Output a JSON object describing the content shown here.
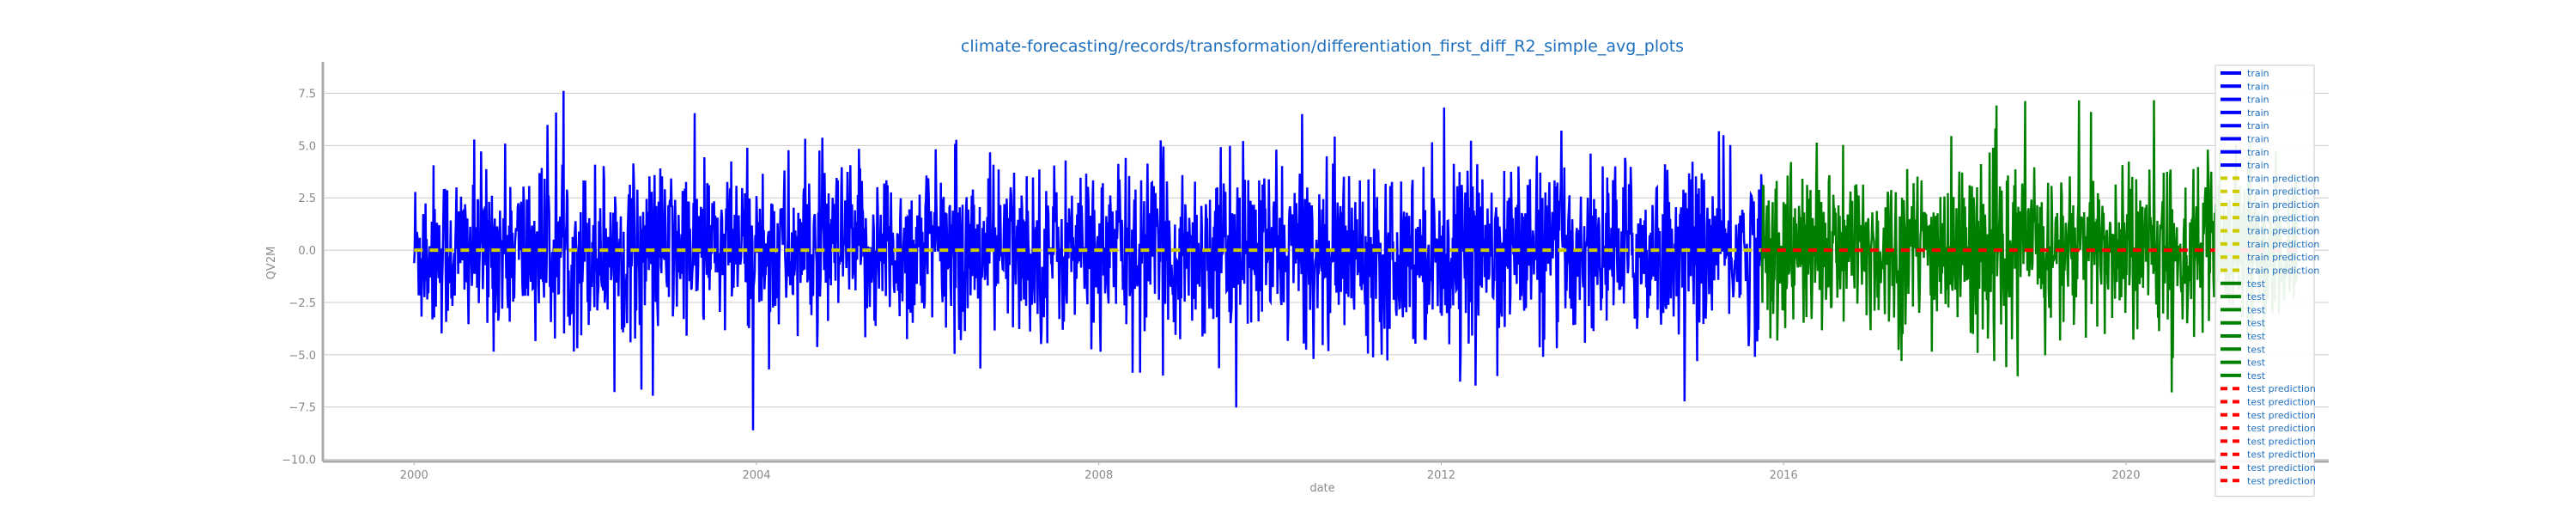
{
  "chart_data": {
    "type": "line",
    "title": "climate-forecasting/records/transformation/differentiation_first_diff_R2_simple_avg_plots",
    "xlabel": "date",
    "ylabel": "QV2M",
    "x_ticks": [
      "2000",
      "2004",
      "2008",
      "2012",
      "2016",
      "2020"
    ],
    "y_ticks": [
      "7.5",
      "5.0",
      "2.5",
      "0.0",
      "−2.5",
      "−5.0",
      "−7.5",
      "−10.0"
    ],
    "y_tick_values": [
      7.5,
      5.0,
      2.5,
      0.0,
      -2.5,
      -5.0,
      -7.5,
      -10.0
    ],
    "xlim": [
      "1998-12-15",
      "2022-05-15"
    ],
    "ylim": [
      -10.1,
      9.0
    ],
    "grid": true,
    "legend_position": "right",
    "series": [
      {
        "name": "train",
        "color": "#0000ff",
        "style": "solid",
        "x_start": "2000-01-01",
        "x_end": "2015-09-30",
        "y_range": [
          -9.3,
          8.2
        ],
        "y_typical": [
          -5.0,
          4.0
        ]
      },
      {
        "name": "train prediction",
        "color": "#cccc00",
        "style": "dashed",
        "x_start": "2000-01-01",
        "x_end": "2015-09-30",
        "y_constant": 0.0
      },
      {
        "name": "test",
        "color": "#008000",
        "style": "solid",
        "x_start": "2015-09-30",
        "x_end": "2021-12-31",
        "y_range": [
          -8.5,
          7.5
        ],
        "y_typical": [
          -5.0,
          4.0
        ]
      },
      {
        "name": "test prediction",
        "color": "#ff0000",
        "style": "dashed",
        "x_start": "2015-09-30",
        "x_end": "2021-12-31",
        "y_constant": 0.0
      }
    ],
    "legend": [
      {
        "label": "train",
        "color": "#0000ff",
        "style": "solid"
      },
      {
        "label": "train",
        "color": "#0000ff",
        "style": "solid"
      },
      {
        "label": "train",
        "color": "#0000ff",
        "style": "solid"
      },
      {
        "label": "train",
        "color": "#0000ff",
        "style": "solid"
      },
      {
        "label": "train",
        "color": "#0000ff",
        "style": "solid"
      },
      {
        "label": "train",
        "color": "#0000ff",
        "style": "solid"
      },
      {
        "label": "train",
        "color": "#0000ff",
        "style": "solid"
      },
      {
        "label": "train",
        "color": "#0000ff",
        "style": "solid"
      },
      {
        "label": "train prediction",
        "color": "#cccc00",
        "style": "dashed"
      },
      {
        "label": "train prediction",
        "color": "#cccc00",
        "style": "dashed"
      },
      {
        "label": "train prediction",
        "color": "#cccc00",
        "style": "dashed"
      },
      {
        "label": "train prediction",
        "color": "#cccc00",
        "style": "dashed"
      },
      {
        "label": "train prediction",
        "color": "#cccc00",
        "style": "dashed"
      },
      {
        "label": "train prediction",
        "color": "#cccc00",
        "style": "dashed"
      },
      {
        "label": "train prediction",
        "color": "#cccc00",
        "style": "dashed"
      },
      {
        "label": "train prediction",
        "color": "#cccc00",
        "style": "dashed"
      },
      {
        "label": "test",
        "color": "#008000",
        "style": "solid"
      },
      {
        "label": "test",
        "color": "#008000",
        "style": "solid"
      },
      {
        "label": "test",
        "color": "#008000",
        "style": "solid"
      },
      {
        "label": "test",
        "color": "#008000",
        "style": "solid"
      },
      {
        "label": "test",
        "color": "#008000",
        "style": "solid"
      },
      {
        "label": "test",
        "color": "#008000",
        "style": "solid"
      },
      {
        "label": "test",
        "color": "#008000",
        "style": "solid"
      },
      {
        "label": "test",
        "color": "#008000",
        "style": "solid"
      },
      {
        "label": "test prediction",
        "color": "#ff0000",
        "style": "dashed"
      },
      {
        "label": "test prediction",
        "color": "#ff0000",
        "style": "dashed"
      },
      {
        "label": "test prediction",
        "color": "#ff0000",
        "style": "dashed"
      },
      {
        "label": "test prediction",
        "color": "#ff0000",
        "style": "dashed"
      },
      {
        "label": "test prediction",
        "color": "#ff0000",
        "style": "dashed"
      },
      {
        "label": "test prediction",
        "color": "#ff0000",
        "style": "dashed"
      },
      {
        "label": "test prediction",
        "color": "#ff0000",
        "style": "dashed"
      },
      {
        "label": "test prediction",
        "color": "#ff0000",
        "style": "dashed"
      }
    ]
  }
}
